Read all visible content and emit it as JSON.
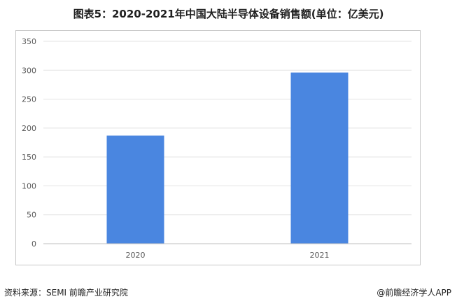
{
  "title": "图表5：2020-2021年中国大陆半导体设备销售额(单位：亿美元)",
  "chart_data": {
    "type": "bar",
    "categories": [
      "2020",
      "2021"
    ],
    "values": [
      187,
      296
    ],
    "yticks": [
      0,
      50,
      100,
      150,
      200,
      250,
      300,
      350
    ],
    "ylim": [
      0,
      350
    ],
    "grid": true,
    "color": "#4a86e0",
    "xlabel": "",
    "ylabel": ""
  },
  "footer": {
    "source": "资料来源：SEMI 前瞻产业研究院",
    "brand": "@前瞻经济学人APP"
  }
}
